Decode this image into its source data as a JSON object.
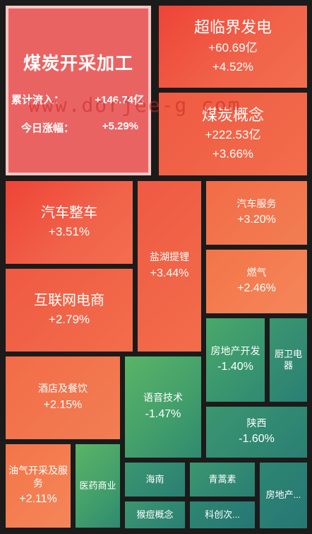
{
  "featured": {
    "name": "煤炭开采加工",
    "flow_label": "累计流入：",
    "flow_value": "+146.74亿",
    "change_label": "今日涨幅：",
    "change_value": "+5.29%"
  },
  "tiles": {
    "chaolinjie": {
      "name": "超临界发电",
      "flow": "+60.69亿",
      "pct": "+4.52%"
    },
    "meitan": {
      "name": "煤炭概念",
      "flow": "+222.53亿",
      "pct": "+3.66%"
    },
    "qiche": {
      "name": "汽车整车",
      "pct": "+3.51%"
    },
    "yanhu": {
      "name": "盐湖提锂",
      "pct": "+3.44%"
    },
    "qichefuwu": {
      "name": "汽车服务",
      "pct": "+3.20%"
    },
    "ranqi": {
      "name": "燃气",
      "pct": "+2.46%"
    },
    "hulianwang": {
      "name": "互联网电商",
      "pct": "+2.79%"
    },
    "jiudian": {
      "name": "酒店及餐饮",
      "pct": "+2.15%"
    },
    "youqi": {
      "name": "油气开采及服务",
      "pct": "+2.11%"
    },
    "yiyao": {
      "name": "医药商业"
    },
    "yuyin": {
      "name": "语音技术",
      "pct": "-1.47%"
    },
    "fangdichan": {
      "name": "房地产开发",
      "pct": "-1.40%"
    },
    "chuwei": {
      "name": "厨卫电器"
    },
    "shanxi": {
      "name": "陕西",
      "pct": "-1.60%"
    },
    "hainan": {
      "name": "海南"
    },
    "qinghaosu": {
      "name": "青蒿素"
    },
    "fangdichan2": {
      "name": "房地产..."
    },
    "houdou": {
      "name": "猴痘概念"
    },
    "kechuang": {
      "name": "科创次..."
    }
  },
  "watermark": "www.dorjee-g       com"
}
